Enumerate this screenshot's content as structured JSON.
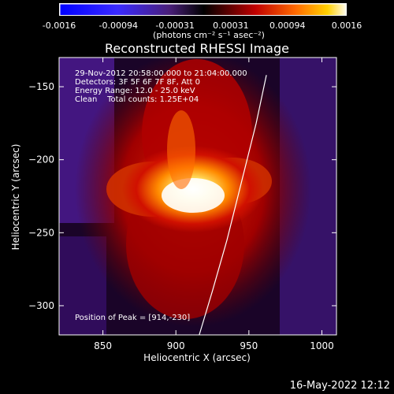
{
  "colorbar": {
    "tick_labels": [
      "-0.0016",
      "-0.00094",
      "-0.00031",
      "0.00031",
      "0.00094",
      "0.0016"
    ],
    "tick_values": [
      -0.0016,
      -0.00094,
      -0.00031,
      0.00031,
      0.00094,
      0.0016
    ],
    "range": [
      -0.0016,
      0.0016
    ],
    "units": "(photons cm⁻² s⁻¹ asec⁻²)"
  },
  "title": "Reconstructed RHESSI Image",
  "annotations": {
    "time_range": "29-Nov-2012 20:58:00.000 to 21:04:00.000",
    "detectors": "Detectors: 3F 5F 6F 7F 8F, Att 0",
    "energy_range": "Energy Range: 12.0 - 25.0 keV",
    "method_counts": "Clean    Total counts: 1.25E+04",
    "peak_position": "Position of Peak = [914,-230]"
  },
  "chart_data": {
    "type": "heatmap",
    "xlabel": "Heliocentric X (arcsec)",
    "ylabel": "Heliocentric Y (arcsec)",
    "xlim": [
      820,
      1010
    ],
    "ylim": [
      -320,
      -130
    ],
    "xticks": [
      850,
      900,
      950,
      1000
    ],
    "yticks": [
      -300,
      -250,
      -200,
      -150
    ],
    "xtick_labels": [
      "850",
      "900",
      "950",
      "1000"
    ],
    "ytick_labels": [
      "−300",
      "−250",
      "−200",
      "−150"
    ],
    "peak": {
      "x": 914,
      "y": -230
    },
    "limb_curve": {
      "x": [
        916,
        925,
        935,
        945,
        955,
        962
      ],
      "y": [
        -320,
        -290,
        -255,
        -215,
        -175,
        -142
      ]
    },
    "colors": {
      "low": "#4b1a8f",
      "mid": "#c00000",
      "high": "#ffffff",
      "limb": "#ffffff"
    }
  },
  "footer_timestamp": "16-May-2022 12:12"
}
